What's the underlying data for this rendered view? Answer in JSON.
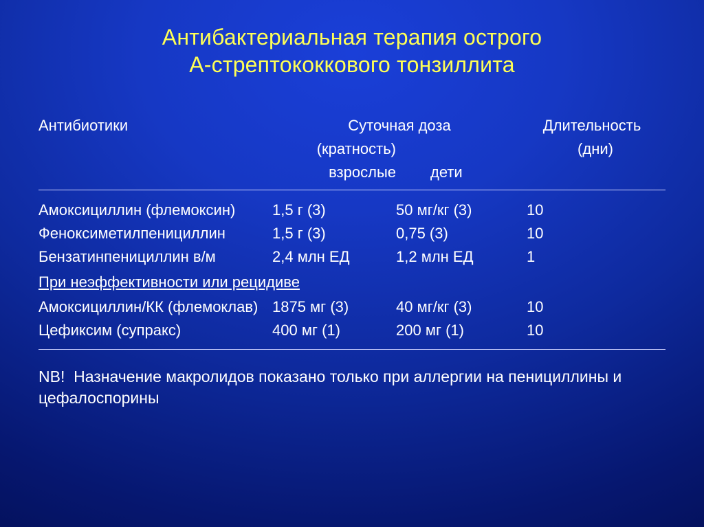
{
  "colors": {
    "bg_center": "#1a3fd8",
    "bg_outer": "#020b48",
    "title": "#ffff55",
    "text": "#ffffff",
    "rule": "#cfd3ff"
  },
  "typography": {
    "title_fontsize": 32,
    "body_fontsize": 22,
    "footnote_fontsize": 23,
    "font_family": "Arial"
  },
  "title_line1": "Антибактериальная терапия острого",
  "title_line2": "А-стрептококкового тонзиллита",
  "headers": {
    "col_antibiotics": "Антибиотики",
    "col_dose": "Суточная доза",
    "col_dose_sub": "(кратность)",
    "col_duration": "Длительность",
    "col_duration_sub": "(дни)",
    "sub_adults": "взрослые",
    "sub_children": "дети"
  },
  "rows": [
    {
      "name": "Амоксициллин (флемоксин)",
      "adult": "1,5 г (3)",
      "child": "50 мг/кг (3)",
      "days": "10"
    },
    {
      "name": "Феноксиметилпенициллин",
      "adult": "1,5 г (3)",
      "child": "0,75 (3)",
      "days": "10"
    },
    {
      "name": "Бензатинпенициллин в/м",
      "adult": "2,4 млн ЕД",
      "child": "1,2 млн ЕД",
      "days": "1"
    }
  ],
  "section_label": "При неэффективности или рецидиве",
  "rows2": [
    {
      "name": "Амоксициллин/КК (флемоклав)",
      "adult": "1875 мг (3)",
      "child": "40 мг/кг (3)",
      "days": "10"
    },
    {
      "name": "Цефиксим (супракс)",
      "adult": "400 мг (1)",
      "child": "200 мг (1)",
      "days": "10"
    }
  ],
  "footnote_prefix": "NB!",
  "footnote_text": "Назначение макролидов показано только при аллергии на пенициллины и цефалоспорины"
}
